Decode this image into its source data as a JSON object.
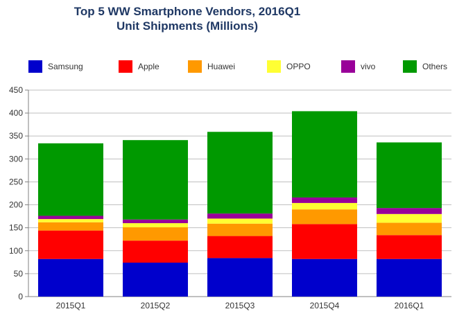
{
  "chart_data": {
    "type": "bar",
    "stacked": true,
    "title_line1": "Top 5 WW Smartphone Vendors, 2016Q1",
    "title_line2": "Unit Shipments (Millions)",
    "categories": [
      "2015Q1",
      "2015Q2",
      "2015Q3",
      "2015Q4",
      "2016Q1"
    ],
    "ylim": [
      0,
      450
    ],
    "yticks": [
      0,
      50,
      100,
      150,
      200,
      250,
      300,
      350,
      400,
      450
    ],
    "grid": "horizontal",
    "legend_position": "top",
    "series": [
      {
        "name": "Samsung",
        "color": "#0000cc",
        "values": [
          82,
          74,
          84,
          82,
          82
        ]
      },
      {
        "name": "Apple",
        "color": "#ff0000",
        "values": [
          62,
          48,
          48,
          76,
          52
        ]
      },
      {
        "name": "Huawei",
        "color": "#ff9900",
        "values": [
          18,
          29,
          27,
          32,
          27
        ]
      },
      {
        "name": "OPPO",
        "color": "#ffff33",
        "values": [
          7,
          9,
          11,
          14,
          19
        ]
      },
      {
        "name": "vivo",
        "color": "#990099",
        "values": [
          7,
          8,
          11,
          12,
          13
        ]
      },
      {
        "name": "Others",
        "color": "#009900",
        "values": [
          158,
          173,
          178,
          188,
          143
        ]
      }
    ]
  }
}
